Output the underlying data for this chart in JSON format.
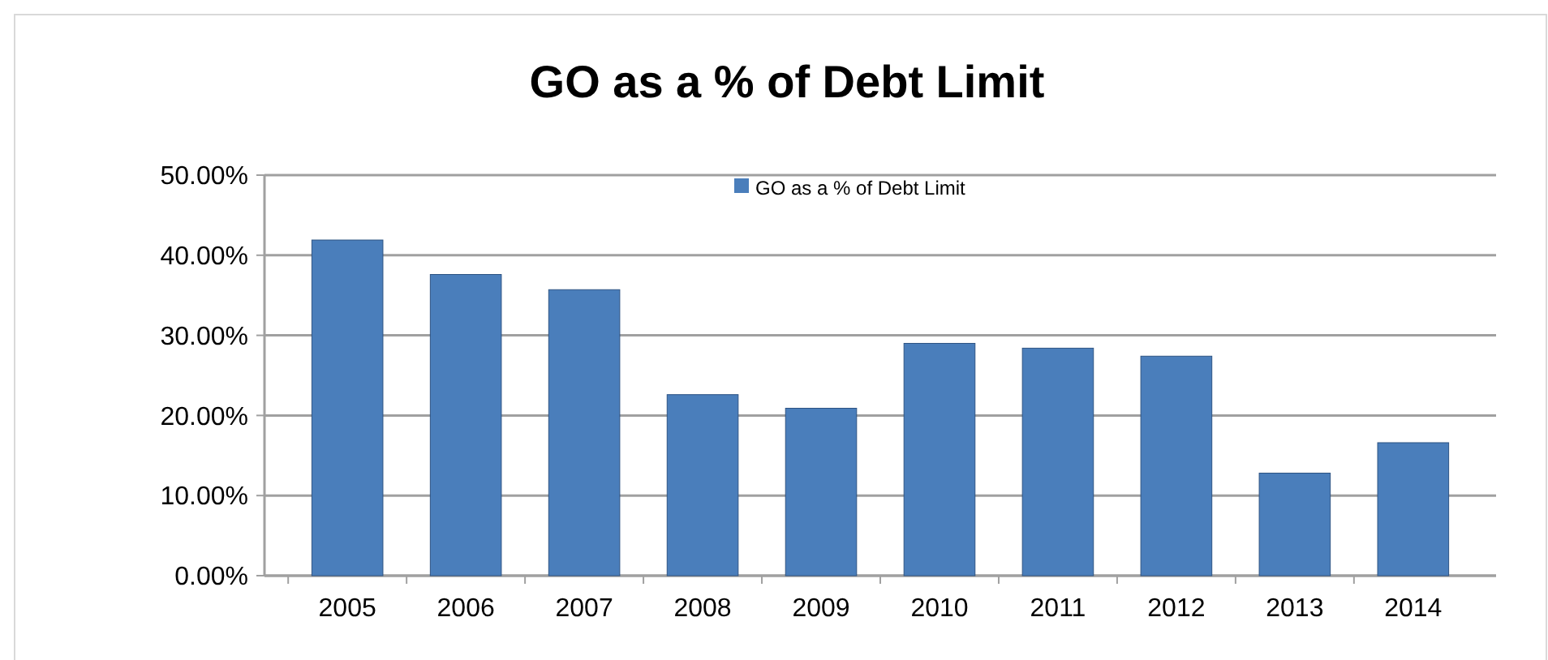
{
  "chart_data": {
    "type": "bar",
    "title": "GO as a % of Debt Limit",
    "categories": [
      "2005",
      "2006",
      "2007",
      "2008",
      "2009",
      "2010",
      "2011",
      "2012",
      "2013",
      "2014"
    ],
    "series": [
      {
        "name": "GO as a % of Debt Limit",
        "color": "#4a7ebb",
        "values": [
          41.9,
          37.6,
          35.7,
          22.6,
          20.9,
          29.0,
          28.4,
          27.4,
          12.8,
          16.6
        ]
      }
    ],
    "ylim": [
      0,
      50
    ],
    "yticks": [
      {
        "value": 0,
        "label": "0.00%"
      },
      {
        "value": 10,
        "label": "10.00%"
      },
      {
        "value": 20,
        "label": "20.00%"
      },
      {
        "value": 30,
        "label": "30.00%"
      },
      {
        "value": 40,
        "label": "40.00%"
      },
      {
        "value": 50,
        "label": "50.00%"
      }
    ],
    "grid": "y",
    "legend": "top"
  }
}
